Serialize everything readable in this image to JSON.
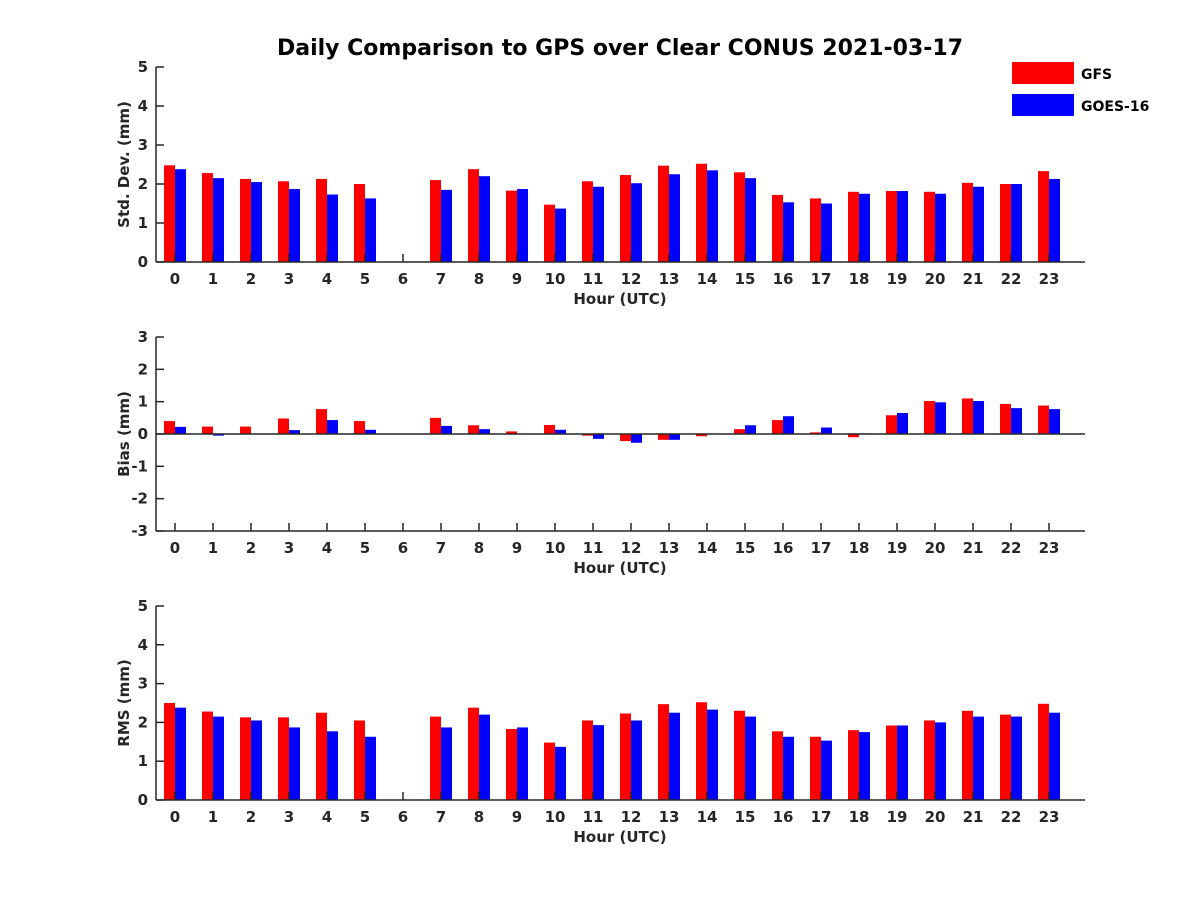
{
  "title": "Daily Comparison to GPS over Clear CONUS 2021-03-17",
  "legend": [
    {
      "name": "GFS",
      "color": "#ff0000"
    },
    {
      "name": "GOES-16",
      "color": "#0000ff"
    }
  ],
  "chart_data": [
    {
      "type": "bar",
      "xlabel": "Hour (UTC)",
      "ylabel": "Std. Dev. (mm)",
      "ylim": [
        0,
        5
      ],
      "yticks": [
        "0",
        "1",
        "2",
        "3",
        "4",
        "5"
      ],
      "categories": [
        "0",
        "1",
        "2",
        "3",
        "4",
        "5",
        "6",
        "7",
        "8",
        "9",
        "10",
        "11",
        "12",
        "13",
        "14",
        "15",
        "16",
        "17",
        "18",
        "19",
        "20",
        "21",
        "22",
        "23"
      ],
      "series": [
        {
          "name": "GFS",
          "color": "#ff0000",
          "values": [
            2.48,
            2.28,
            2.13,
            2.07,
            2.13,
            2.0,
            null,
            2.1,
            2.38,
            1.83,
            1.47,
            2.07,
            2.23,
            2.47,
            2.52,
            2.3,
            1.72,
            1.63,
            1.8,
            1.82,
            1.8,
            2.03,
            2.0,
            2.33
          ]
        },
        {
          "name": "GOES-16",
          "color": "#0000ff",
          "values": [
            2.38,
            2.15,
            2.05,
            1.87,
            1.73,
            1.63,
            null,
            1.85,
            2.2,
            1.87,
            1.37,
            1.93,
            2.02,
            2.25,
            2.35,
            2.15,
            1.53,
            1.5,
            1.75,
            1.82,
            1.75,
            1.93,
            2.0,
            2.13
          ]
        }
      ]
    },
    {
      "type": "bar",
      "xlabel": "Hour (UTC)",
      "ylabel": "Bias (mm)",
      "ylim": [
        -3,
        3
      ],
      "yticks": [
        "-3",
        "-2",
        "-1",
        "0",
        "1",
        "2",
        "3"
      ],
      "categories": [
        "0",
        "1",
        "2",
        "3",
        "4",
        "5",
        "6",
        "7",
        "8",
        "9",
        "10",
        "11",
        "12",
        "13",
        "14",
        "15",
        "16",
        "17",
        "18",
        "19",
        "20",
        "21",
        "22",
        "23"
      ],
      "series": [
        {
          "name": "GFS",
          "color": "#ff0000",
          "values": [
            0.4,
            0.23,
            0.23,
            0.48,
            0.77,
            0.4,
            null,
            0.5,
            0.27,
            0.08,
            0.28,
            -0.05,
            -0.22,
            -0.18,
            -0.07,
            0.15,
            0.43,
            0.05,
            -0.1,
            0.58,
            1.02,
            1.1,
            0.93,
            0.88
          ]
        },
        {
          "name": "GOES-16",
          "color": "#0000ff",
          "values": [
            0.22,
            -0.05,
            0.0,
            0.12,
            0.43,
            0.13,
            null,
            0.25,
            0.15,
            0.0,
            0.13,
            -0.15,
            -0.27,
            -0.18,
            0.0,
            0.27,
            0.55,
            0.2,
            0.02,
            0.65,
            0.98,
            1.02,
            0.8,
            0.77
          ]
        }
      ]
    },
    {
      "type": "bar",
      "xlabel": "Hour (UTC)",
      "ylabel": "RMS (mm)",
      "ylim": [
        0,
        5
      ],
      "yticks": [
        "0",
        "1",
        "2",
        "3",
        "4",
        "5"
      ],
      "categories": [
        "0",
        "1",
        "2",
        "3",
        "4",
        "5",
        "6",
        "7",
        "8",
        "9",
        "10",
        "11",
        "12",
        "13",
        "14",
        "15",
        "16",
        "17",
        "18",
        "19",
        "20",
        "21",
        "22",
        "23"
      ],
      "series": [
        {
          "name": "GFS",
          "color": "#ff0000",
          "values": [
            2.5,
            2.28,
            2.13,
            2.13,
            2.25,
            2.05,
            null,
            2.15,
            2.38,
            1.83,
            1.48,
            2.05,
            2.23,
            2.47,
            2.52,
            2.3,
            1.77,
            1.63,
            1.8,
            1.92,
            2.05,
            2.3,
            2.2,
            2.48
          ]
        },
        {
          "name": "GOES-16",
          "color": "#0000ff",
          "values": [
            2.38,
            2.15,
            2.05,
            1.87,
            1.77,
            1.63,
            null,
            1.87,
            2.2,
            1.87,
            1.37,
            1.93,
            2.05,
            2.25,
            2.33,
            2.15,
            1.63,
            1.53,
            1.75,
            1.92,
            2.0,
            2.15,
            2.15,
            2.25
          ]
        }
      ]
    }
  ]
}
